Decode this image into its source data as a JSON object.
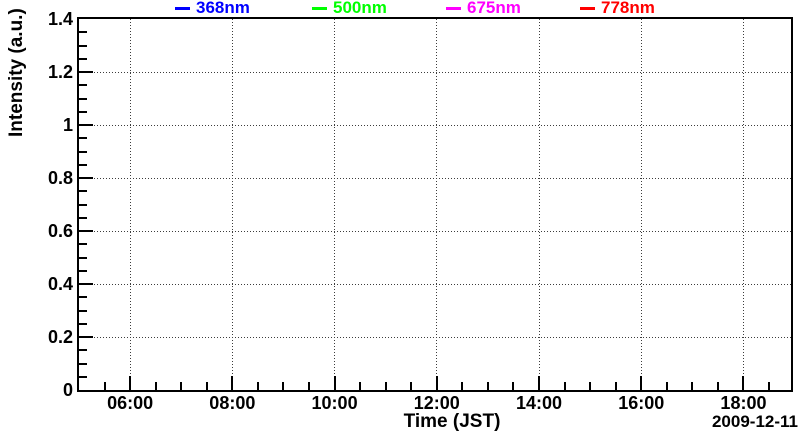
{
  "chart_data": {
    "type": "line",
    "title": "",
    "xlabel": "Time (JST)",
    "ylabel": "Intensity (a.u.)",
    "date_label": "2009-12-11",
    "grid": true,
    "legend_position": "top",
    "x_axis": {
      "range_hours": [
        5.0,
        18.93
      ],
      "major_tick_hours": [
        6,
        8,
        10,
        12,
        14,
        16,
        18
      ],
      "major_tick_labels": [
        "06:00",
        "08:00",
        "10:00",
        "12:00",
        "14:00",
        "16:00",
        "18:00"
      ],
      "minor_step_hours": 0.5
    },
    "y_axis": {
      "range": [
        0,
        1.4
      ],
      "major_step": 0.2,
      "minor_step": 0.05,
      "major_tick_values": [
        0,
        0.2,
        0.4,
        0.6,
        0.8,
        1.0,
        1.2,
        1.4
      ],
      "major_tick_labels": [
        "0",
        "0.2",
        "0.4",
        "0.6",
        "0.8",
        "1",
        "1.2",
        "1.4"
      ]
    },
    "series": [
      {
        "name": "368nm",
        "color": "#0000ff",
        "points": []
      },
      {
        "name": "500nm",
        "color": "#00ff00",
        "points": []
      },
      {
        "name": "675nm",
        "color": "#ff00ff",
        "points": []
      },
      {
        "name": "778nm",
        "color": "#ff0000",
        "points": []
      }
    ],
    "colors": {
      "axis": "#000000",
      "grid": "#3c3c3c",
      "background": "#ffffff",
      "text": "#000000"
    }
  }
}
